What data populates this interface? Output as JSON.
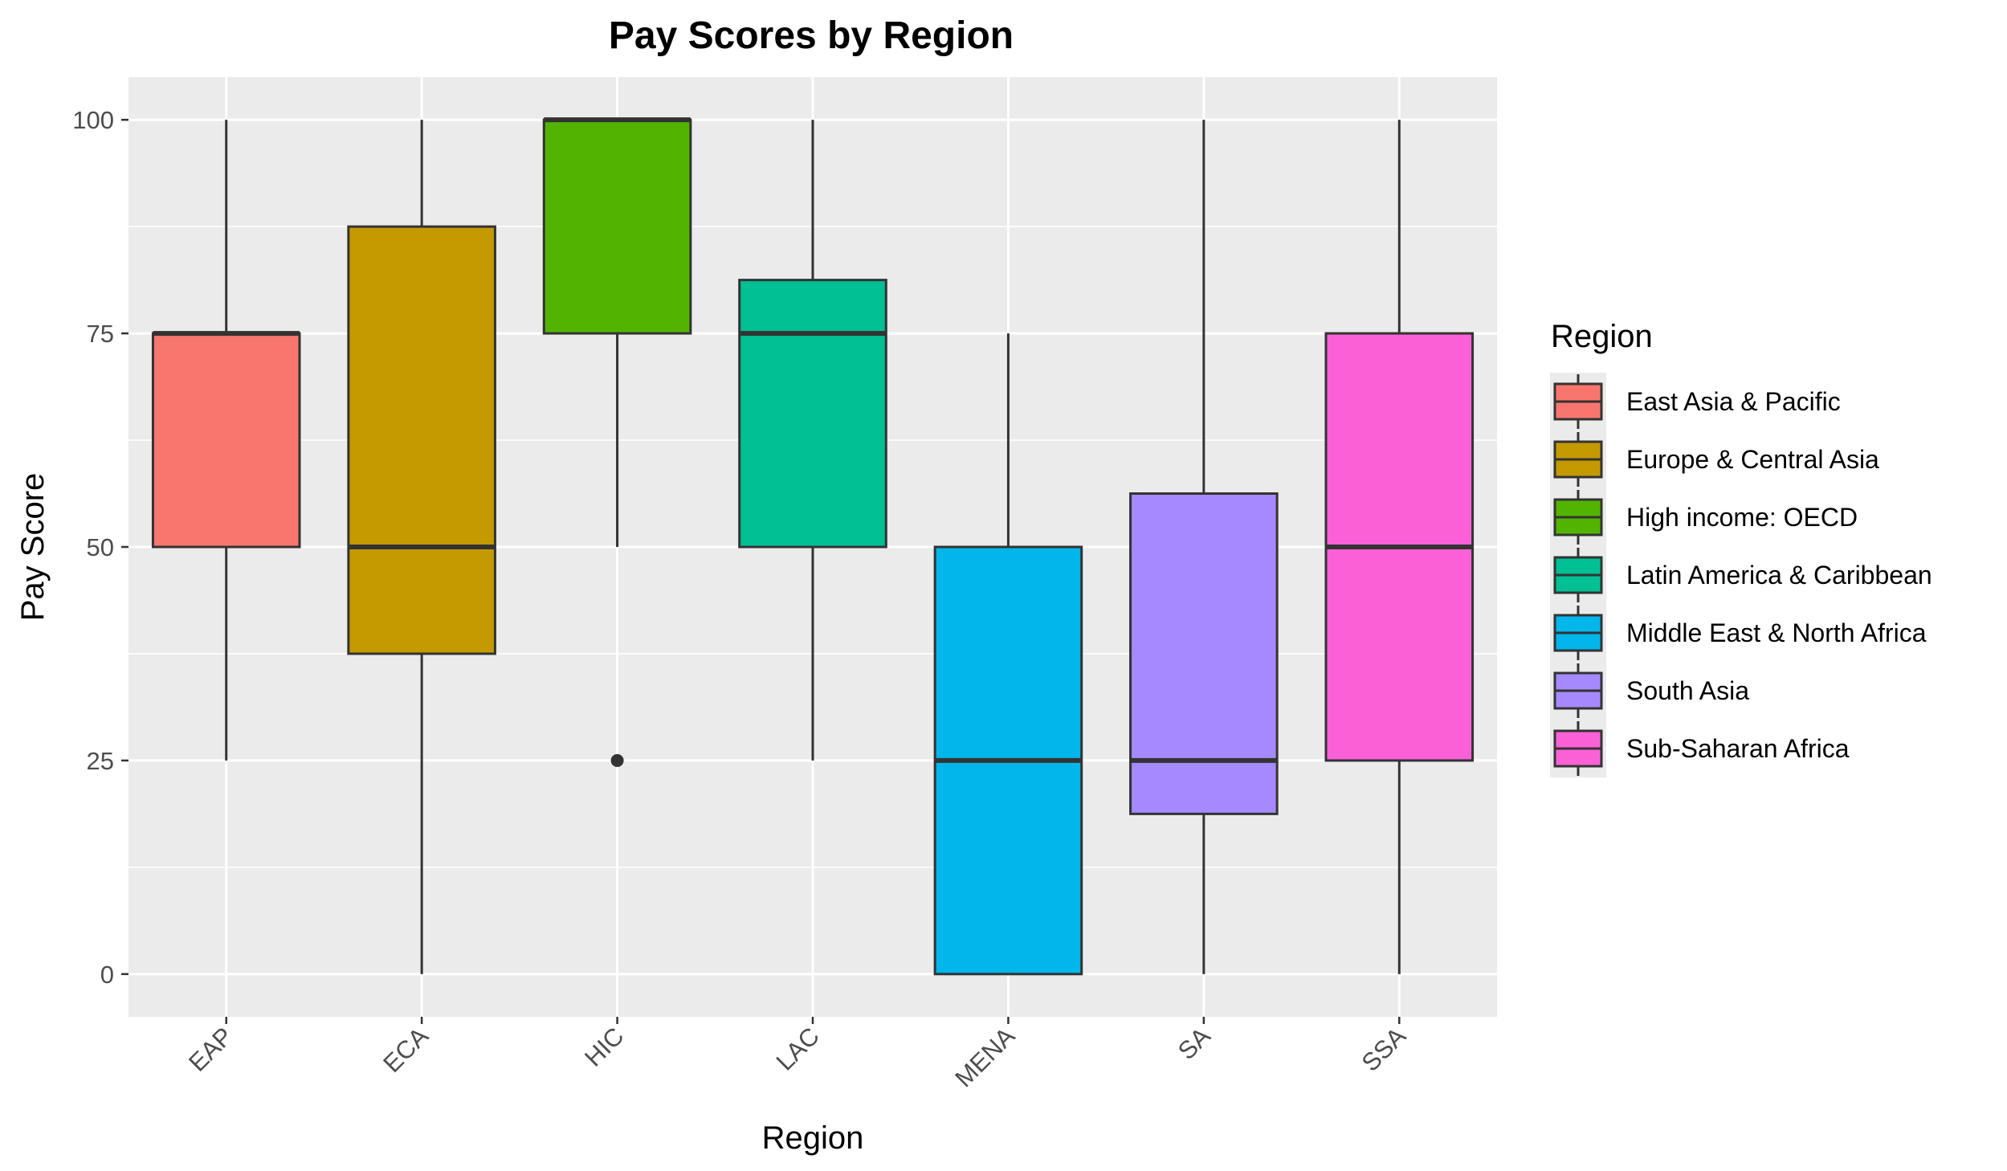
{
  "chart_data": {
    "type": "boxplot",
    "title": "Pay Scores by Region",
    "xlabel": "Region",
    "ylabel": "Pay Score",
    "ylim": [
      -5,
      105
    ],
    "yticks": [
      0,
      25,
      50,
      75,
      100
    ],
    "grid": true,
    "legend": {
      "title": "Region",
      "placement": "right",
      "items": [
        {
          "label": "East Asia & Pacific",
          "color": "#F8766D"
        },
        {
          "label": "Europe & Central Asia",
          "color": "#C49A00"
        },
        {
          "label": "High income: OECD",
          "color": "#53B400"
        },
        {
          "label": "Latin America & Caribbean",
          "color": "#00C094"
        },
        {
          "label": "Middle East & North Africa",
          "color": "#00B6EB"
        },
        {
          "label": "South Asia",
          "color": "#A58AFF"
        },
        {
          "label": "Sub-Saharan Africa",
          "color": "#FB61D7"
        }
      ]
    },
    "categories": [
      "EAP",
      "ECA",
      "HIC",
      "LAC",
      "MENA",
      "SA",
      "SSA"
    ],
    "boxes": [
      {
        "category": "EAP",
        "whisker_low": 25,
        "q1": 50,
        "median": 75,
        "q3": 75,
        "whisker_high": 100,
        "outliers": [],
        "color": "#F8766D"
      },
      {
        "category": "ECA",
        "whisker_low": 0,
        "q1": 37.5,
        "median": 50,
        "q3": 87.5,
        "whisker_high": 100,
        "outliers": [],
        "color": "#C49A00"
      },
      {
        "category": "HIC",
        "whisker_low": 50,
        "q1": 75,
        "median": 100,
        "q3": 100,
        "whisker_high": 100,
        "outliers": [
          25
        ],
        "color": "#53B400"
      },
      {
        "category": "LAC",
        "whisker_low": 25,
        "q1": 50,
        "median": 75,
        "q3": 81.25,
        "whisker_high": 100,
        "outliers": [],
        "color": "#00C094"
      },
      {
        "category": "MENA",
        "whisker_low": 0,
        "q1": 0,
        "median": 25,
        "q3": 50,
        "whisker_high": 75,
        "outliers": [],
        "color": "#00B6EB"
      },
      {
        "category": "SA",
        "whisker_low": 0,
        "q1": 18.75,
        "median": 25,
        "q3": 56.25,
        "whisker_high": 100,
        "outliers": [],
        "color": "#A58AFF"
      },
      {
        "category": "SSA",
        "whisker_low": 0,
        "q1": 25,
        "median": 50,
        "q3": 75,
        "whisker_high": 100,
        "outliers": [],
        "color": "#FB61D7"
      }
    ],
    "colors": {
      "panel_background": "#EBEBEB",
      "grid_line": "#FFFFFF",
      "box_outline": "#333333",
      "tick_text": "#4D4D4D"
    }
  }
}
